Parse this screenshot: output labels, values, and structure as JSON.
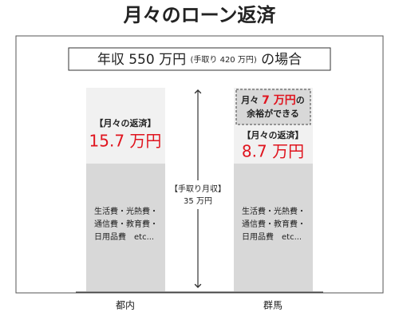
{
  "title": "月々のローン返済",
  "header": {
    "main": "年収 550 万円",
    "note": "(手取り 420 万円)",
    "suffix": "の場合"
  },
  "income": {
    "label": "【手取り月収】",
    "amount": "35 万円"
  },
  "callout": {
    "prefix": "月々 ",
    "amount": "7 万円",
    "suffix": "の",
    "line2": "余裕ができる"
  },
  "columns": [
    {
      "label": "都内",
      "payment_label": "【月々の返済】",
      "payment": "15.7 万円",
      "expenses": [
        "生活費・光熱費・",
        "通信費・教育費・",
        "日用品費　etc..."
      ]
    },
    {
      "label": "群馬",
      "payment_label": "【月々の返済】",
      "payment": "8.7 万円",
      "expenses": [
        "生活費・光熱費・",
        "通信費・教育費・",
        "日用品費　etc..."
      ]
    }
  ]
}
